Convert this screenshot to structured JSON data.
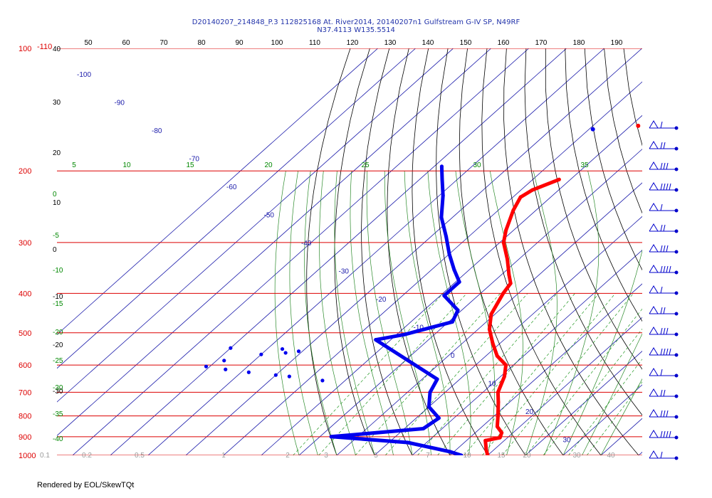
{
  "title": {
    "line1": "D20140207_214848_P.3 112825168 At. River2014, 20140207n1 Gulfstream G-IV SP, N49RF",
    "line2": "N37.4113 W135.5514"
  },
  "footer": "Rendered by EOL/SkewTQt",
  "colors": {
    "pressure_lines": "#dd0000",
    "isotherms": "#1a1aaa",
    "dry_adiabats": "#000000",
    "mixing_ratio": "#008800",
    "moist_adiabats": "#2a8a2a",
    "temperature": "#ff0000",
    "dewpoint": "#0000ee",
    "wind_barbs": "#0000cc"
  },
  "chart_data": {
    "type": "line",
    "subtype": "skew-T log-P diagram",
    "pressure_levels": [
      "100",
      "200",
      "300",
      "400",
      "500",
      "600",
      "700",
      "800",
      "900",
      "1000"
    ],
    "top_axis_labels": [
      "50",
      "60",
      "70",
      "80",
      "90",
      "100",
      "110",
      "120",
      "130",
      "140",
      "150",
      "160",
      "170",
      "180",
      "190"
    ],
    "isotherm_labels": [
      "-100",
      "-90",
      "-80",
      "-70",
      "-60",
      "-50",
      "-40",
      "-30",
      "-20",
      "-10",
      "0",
      "10",
      "20",
      "30"
    ],
    "left_black_labels": [
      "40",
      "30",
      "20",
      "10",
      "0",
      "-10",
      "-20",
      "-30"
    ],
    "left_green_labels": [
      "0",
      "-5",
      "-10",
      "-15",
      "-20",
      "-25",
      "-30",
      "-35",
      "-40"
    ],
    "mixing_ratio_top_labels": [
      "5",
      "10",
      "15",
      "20",
      "25",
      "30",
      "35"
    ],
    "mixing_ratio_bottom_labels": [
      "0.1",
      "0.2",
      "0.5",
      "1",
      "2",
      "3",
      "5",
      "7",
      "10",
      "15",
      "20",
      "30",
      "40"
    ],
    "corner_label": "-110",
    "series": [
      {
        "name": "Temperature",
        "points": [
          {
            "p": 210,
            "t": -53
          },
          {
            "p": 223,
            "t": -57
          },
          {
            "p": 232,
            "t": -58
          },
          {
            "p": 250,
            "t": -56
          },
          {
            "p": 280,
            "t": -52
          },
          {
            "p": 300,
            "t": -49
          },
          {
            "p": 330,
            "t": -43
          },
          {
            "p": 360,
            "t": -38
          },
          {
            "p": 378,
            "t": -35
          },
          {
            "p": 400,
            "t": -34
          },
          {
            "p": 450,
            "t": -31
          },
          {
            "p": 490,
            "t": -27
          },
          {
            "p": 530,
            "t": -22
          },
          {
            "p": 570,
            "t": -17
          },
          {
            "p": 600,
            "t": -12
          },
          {
            "p": 640,
            "t": -9
          },
          {
            "p": 700,
            "t": -6
          },
          {
            "p": 740,
            "t": -3
          },
          {
            "p": 800,
            "t": 1
          },
          {
            "p": 850,
            "t": 4
          },
          {
            "p": 880,
            "t": 7
          },
          {
            "p": 905,
            "t": 8
          },
          {
            "p": 920,
            "t": 5
          },
          {
            "p": 970,
            "t": 8
          },
          {
            "p": 1000,
            "t": 10
          }
        ]
      },
      {
        "name": "Dewpoint",
        "points": [
          {
            "p": 195,
            "t": -88
          },
          {
            "p": 210,
            "t": -84
          },
          {
            "p": 230,
            "t": -79
          },
          {
            "p": 260,
            "t": -73
          },
          {
            "p": 290,
            "t": -66
          },
          {
            "p": 320,
            "t": -60
          },
          {
            "p": 350,
            "t": -54
          },
          {
            "p": 375,
            "t": -49
          },
          {
            "p": 405,
            "t": -49
          },
          {
            "p": 440,
            "t": -41
          },
          {
            "p": 470,
            "t": -39
          },
          {
            "p": 505,
            "t": -48
          },
          {
            "p": 520,
            "t": -54
          },
          {
            "p": 650,
            "t": -26
          },
          {
            "p": 700,
            "t": -24
          },
          {
            "p": 760,
            "t": -20
          },
          {
            "p": 810,
            "t": -14
          },
          {
            "p": 860,
            "t": -15
          },
          {
            "p": 900,
            "t": -37
          },
          {
            "p": 930,
            "t": -15
          },
          {
            "p": 980,
            "t": -1
          },
          {
            "p": 1000,
            "t": 3
          }
        ]
      }
    ],
    "scatter_dewpoint_points": [
      {
        "p": 545,
        "t": -90
      },
      {
        "p": 548,
        "t": -76
      },
      {
        "p": 555,
        "t": -71
      },
      {
        "p": 560,
        "t": -74
      },
      {
        "p": 565,
        "t": -80
      },
      {
        "p": 585,
        "t": -88
      },
      {
        "p": 605,
        "t": -91
      },
      {
        "p": 615,
        "t": -85
      },
      {
        "p": 625,
        "t": -78
      },
      {
        "p": 635,
        "t": -70
      },
      {
        "p": 640,
        "t": -66
      },
      {
        "p": 655,
        "t": -56
      }
    ],
    "upper_points": [
      {
        "series": "Temperature",
        "p": 155,
        "t": -48
      },
      {
        "series": "Dewpoint",
        "p": 158,
        "t": -59
      }
    ],
    "wind_barbs": 17,
    "grid": true
  }
}
